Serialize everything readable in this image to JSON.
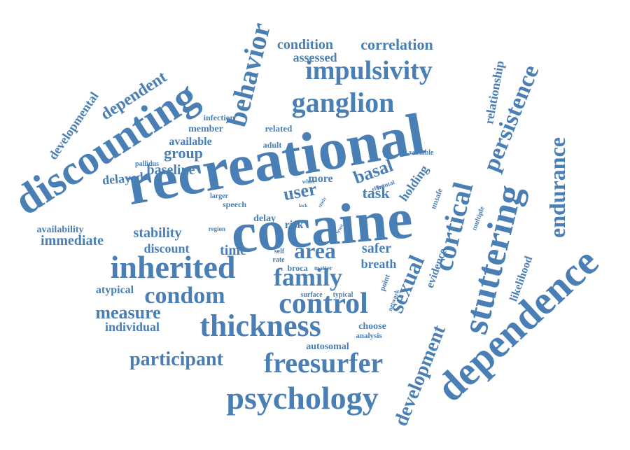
{
  "color": "#4a7fb5",
  "words": [
    {
      "text": "recreational"
    },
    {
      "text": "cocaine"
    },
    {
      "text": "discounting"
    },
    {
      "text": "dependence"
    },
    {
      "text": "stuttering"
    },
    {
      "text": "inherited"
    },
    {
      "text": "thickness"
    },
    {
      "text": "control"
    },
    {
      "text": "freesurfer"
    },
    {
      "text": "psychology"
    },
    {
      "text": "impulsivity"
    },
    {
      "text": "ganglion"
    },
    {
      "text": "behavior"
    },
    {
      "text": "family"
    },
    {
      "text": "persistence"
    },
    {
      "text": "endurance"
    },
    {
      "text": "cortical"
    },
    {
      "text": "sexual"
    },
    {
      "text": "development"
    },
    {
      "text": "condom"
    },
    {
      "text": "area"
    },
    {
      "text": "user"
    },
    {
      "text": "basal"
    },
    {
      "text": "participant"
    },
    {
      "text": "measure"
    },
    {
      "text": "dependent"
    },
    {
      "text": "developmental"
    },
    {
      "text": "correlation"
    },
    {
      "text": "condition"
    },
    {
      "text": "assessed"
    },
    {
      "text": "relationship"
    },
    {
      "text": "group"
    },
    {
      "text": "baseline"
    },
    {
      "text": "delayed"
    },
    {
      "text": "immediate"
    },
    {
      "text": "availability"
    },
    {
      "text": "stability"
    },
    {
      "text": "discount"
    },
    {
      "text": "individual"
    },
    {
      "text": "atypical"
    },
    {
      "text": "time"
    },
    {
      "text": "safer"
    },
    {
      "text": "breath"
    },
    {
      "text": "task"
    },
    {
      "text": "more"
    },
    {
      "text": "holding"
    },
    {
      "text": "evidence"
    },
    {
      "text": "likelihood"
    },
    {
      "text": "choose"
    },
    {
      "text": "analysis"
    },
    {
      "text": "autosomal"
    },
    {
      "text": "available"
    },
    {
      "text": "member"
    },
    {
      "text": "infection"
    },
    {
      "text": "related"
    },
    {
      "text": "adult"
    },
    {
      "text": "pallidus"
    },
    {
      "text": "delay"
    },
    {
      "text": "speech"
    },
    {
      "text": "larger"
    },
    {
      "text": "risk"
    },
    {
      "text": "region"
    },
    {
      "text": "self"
    },
    {
      "text": "rate"
    },
    {
      "text": "broca"
    },
    {
      "text": "matter"
    },
    {
      "text": "surface"
    },
    {
      "text": "typical"
    },
    {
      "text": "network"
    },
    {
      "text": "point"
    },
    {
      "text": "variable"
    },
    {
      "text": "frontal"
    },
    {
      "text": "effect"
    },
    {
      "text": "unsafe"
    },
    {
      "text": "multiple"
    },
    {
      "text": "white"
    },
    {
      "text": "lack"
    },
    {
      "text": "study"
    },
    {
      "text": "trust"
    }
  ]
}
